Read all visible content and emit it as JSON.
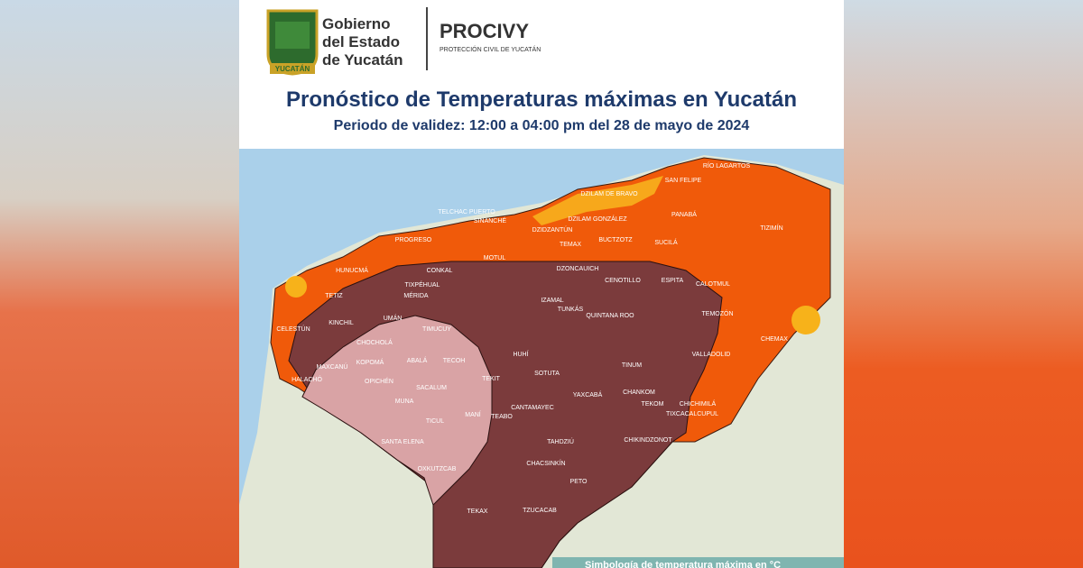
{
  "header": {
    "government": [
      "Gobierno",
      "del Estado",
      "de Yucatán"
    ],
    "shield_text": "YUCATÁN",
    "organization": "PROCIVY",
    "organization_subtitle": "PROTECCIÓN CIVIL DE YUCATÁN"
  },
  "title": "Pronóstico de Temperaturas máximas en Yucatán",
  "subtitle": "Periodo de validez: 12:00 a 04:00 pm del 28 de mayo de 2024",
  "map": {
    "labels": [
      "RÍO LAGARTOS",
      "SAN FELIPE",
      "DZILAM DE BRAVO",
      "TELCHAC PUERTO",
      "SINANCHÉ",
      "DZILAM GONZÁLEZ",
      "PANABÁ",
      "TIZIMÍN",
      "PROGRESO",
      "DZIDZANTÚN",
      "TEMAX",
      "BUCTZOTZ",
      "SUCILÁ",
      "HUNUCMÁ",
      "MOTUL",
      "CONKAL",
      "DZONCAUICH",
      "ESPITA",
      "CALOTMUL",
      "CENOTILLO",
      "TETIZ",
      "TIXPÉHUAL",
      "MÉRIDA",
      "IZAMAL",
      "TUNKÁS",
      "QUINTANA ROO",
      "TEMOZÓN",
      "KINCHIL",
      "UMÁN",
      "CELESTÚN",
      "CHOCHOLÁ",
      "TIMUCUY",
      "CHEMAX",
      "MAXCANÚ",
      "KOPOMÁ",
      "ABALÁ",
      "TECOH",
      "HUHÍ",
      "SOTUTA",
      "TINUM",
      "VALLADOLID",
      "OPICHÉN",
      "TEKIT",
      "YAXCABÁ",
      "CHANKOM",
      "HALACHÓ",
      "MUNA",
      "SACALUM",
      "MANÍ",
      "TEABO",
      "TEKOM",
      "CHICHIMILÁ",
      "TIXCACALCUPUL",
      "CHIKINDZONOT",
      "SANTA ELENA",
      "TICUL",
      "TAHDZIÚ",
      "CHACSINKÍN",
      "OXKUTZCAB",
      "PETO",
      "TEKAX",
      "TZUCACAB",
      "CANTAMAYEC"
    ],
    "legend_title": "Simbología de temperatura máxima en °C"
  }
}
